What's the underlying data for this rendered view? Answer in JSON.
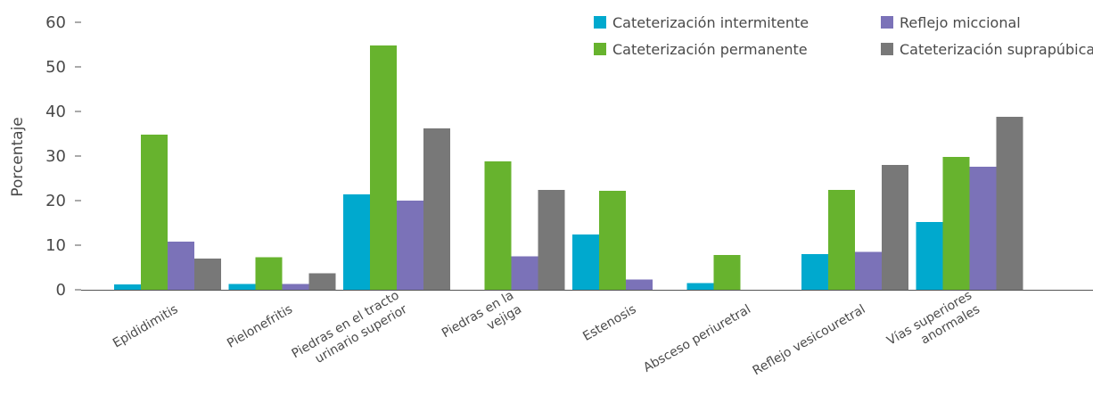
{
  "chart_data": {
    "type": "bar",
    "ylabel": "Porcentaje",
    "ylim": [
      0,
      60
    ],
    "yticks": [
      0,
      10,
      20,
      30,
      40,
      50,
      60
    ],
    "grid": false,
    "legend_position": "top-right",
    "categories": [
      [
        "Epididimitis"
      ],
      [
        "Pielonefritis"
      ],
      [
        "Piedras en el tracto",
        "urinario superior"
      ],
      [
        "Piedras en la",
        "vejiga"
      ],
      [
        "Estenosis"
      ],
      [
        "Absceso periuretral"
      ],
      [
        "Reflejo vesicouretral"
      ],
      [
        "Vías superiores",
        "anormales"
      ]
    ],
    "series": [
      {
        "name": "Cateterización intermitente",
        "color": "#00a9ce",
        "values": [
          1.2,
          1.3,
          21.4,
          0,
          12.4,
          1.5,
          8,
          15.2
        ]
      },
      {
        "name": "Cateterización permanente",
        "color": "#67b32e",
        "values": [
          34.8,
          7.3,
          54.8,
          28.8,
          22.2,
          7.8,
          22.4,
          29.8
        ]
      },
      {
        "name": "Reflejo miccional",
        "color": "#7b72b8",
        "values": [
          10.8,
          1.3,
          20,
          7.5,
          2.3,
          0,
          8.5,
          27.6
        ]
      },
      {
        "name": "Cateterización suprapúbica",
        "color": "#787878",
        "values": [
          7,
          3.7,
          36.2,
          22.4,
          0,
          0,
          28,
          38.8
        ]
      }
    ]
  }
}
